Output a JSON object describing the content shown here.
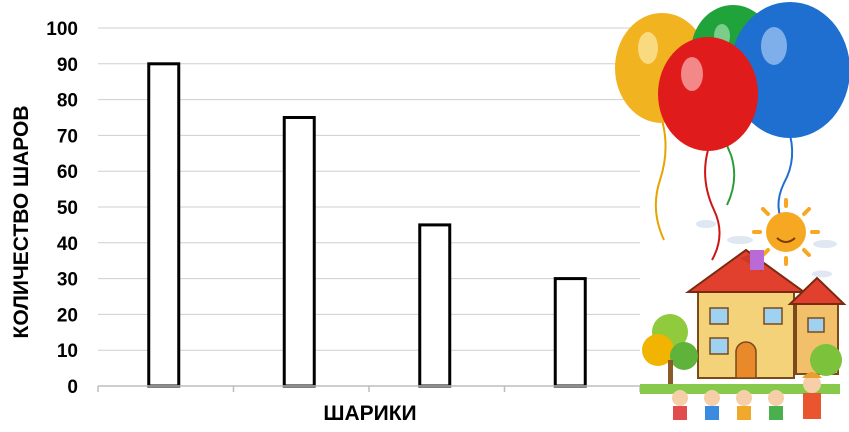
{
  "chart_data": {
    "type": "bar",
    "title": "",
    "xlabel": "ШАРИКИ",
    "ylabel": "КОЛИЧЕСТВО ШАРОВ",
    "categories": [
      "",
      "",
      "",
      ""
    ],
    "values": [
      90,
      75,
      45,
      30
    ],
    "ylim": [
      0,
      100
    ],
    "yticks": [
      0,
      10,
      20,
      30,
      40,
      50,
      60,
      70,
      80,
      90,
      100
    ],
    "grid": true,
    "bar_fill": "#ffffff",
    "bar_stroke": "#000000"
  },
  "illustration": {
    "balloon_colors": [
      "#f2b320",
      "#1fa33a",
      "#1e6fd0",
      "#e01b1b"
    ],
    "icons": [
      "balloons-icon",
      "sun-icon",
      "house-icon",
      "children-icon"
    ]
  }
}
